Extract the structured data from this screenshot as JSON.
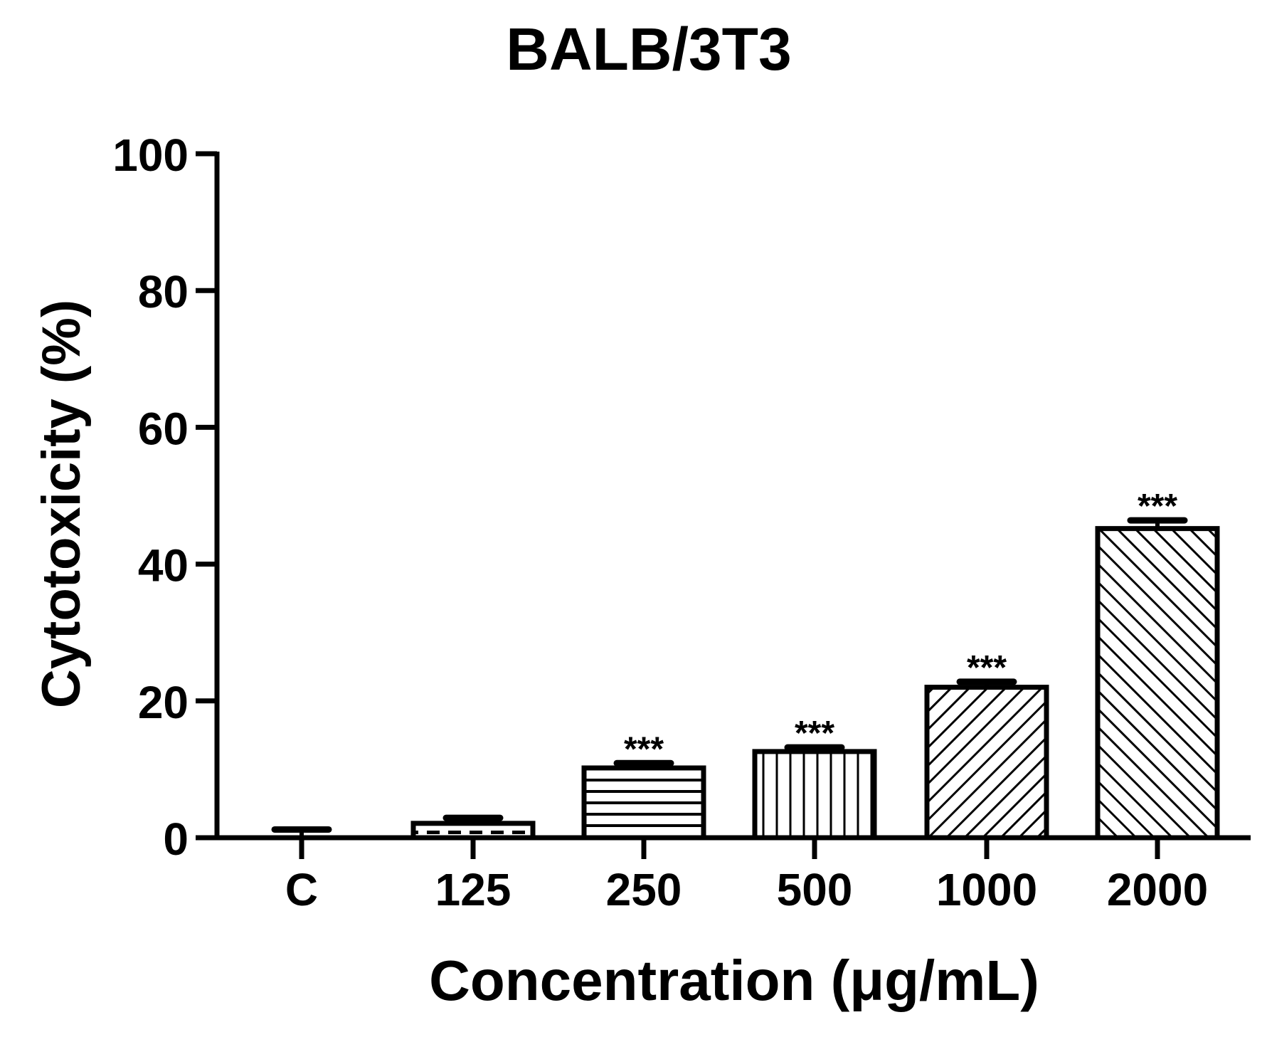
{
  "chart_data": {
    "type": "bar",
    "title": "BALB/3T3",
    "xlabel": "Concentration (μg/mL)",
    "ylabel": "Cytotoxicity (%)",
    "ylim": [
      0,
      100
    ],
    "yticks": [
      "0",
      "20",
      "40",
      "60",
      "80",
      "100"
    ],
    "categories": [
      "C",
      "125",
      "250",
      "500",
      "1000",
      "2000"
    ],
    "values": [
      0,
      2.1,
      10.2,
      12.6,
      22.0,
      45.2
    ],
    "errors": [
      1.2,
      0.8,
      0.7,
      0.6,
      0.8,
      1.2
    ],
    "patterns": [
      "solid",
      "dashes",
      "horizontal",
      "vertical",
      "diag-forward",
      "diag-back"
    ],
    "annotations": [
      "",
      "",
      "***",
      "***",
      "***",
      "***"
    ],
    "grid": false,
    "legend": "none"
  }
}
